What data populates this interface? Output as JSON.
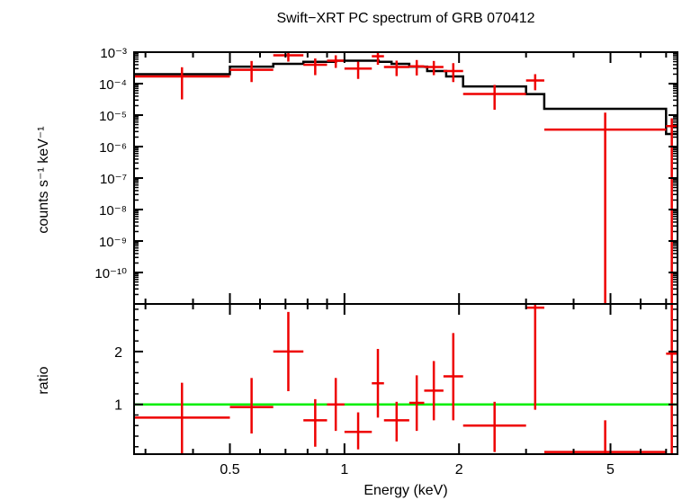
{
  "chart_data": {
    "type": "scatter",
    "title": "Swift−XRT PC spectrum of GRB 070412",
    "xlabel": "Energy (keV)",
    "x_scale": "log",
    "xlim": [
      0.28,
      7.5
    ],
    "x_ticks": [
      {
        "value": 0.5,
        "label": "0.5"
      },
      {
        "value": 1,
        "label": "1"
      },
      {
        "value": 2,
        "label": "2"
      },
      {
        "value": 5,
        "label": "5"
      }
    ],
    "colors": {
      "data": "#ee0000",
      "model": "#000000",
      "unity": "#00ee00"
    },
    "top_panel": {
      "ylabel": "counts s⁻¹ keV⁻¹",
      "y_scale": "log",
      "ylim_exp": [
        -11,
        -3
      ],
      "y_ticks": [
        {
          "exp": -3,
          "label": "10⁻³"
        },
        {
          "exp": -4,
          "label": "10⁻⁴"
        },
        {
          "exp": -5,
          "label": "10⁻⁵"
        },
        {
          "exp": -6,
          "label": "10⁻⁶"
        },
        {
          "exp": -7,
          "label": "10⁻⁷"
        },
        {
          "exp": -8,
          "label": "10⁻⁸"
        },
        {
          "exp": -9,
          "label": "10⁻⁹"
        },
        {
          "exp": -10,
          "label": "10⁻¹⁰"
        }
      ],
      "data": [
        {
          "xlo": 0.28,
          "xhi": 0.5,
          "exp": -3.77,
          "exp_lo": -4.5,
          "exp_hi": -3.48
        },
        {
          "xlo": 0.5,
          "xhi": 0.65,
          "exp": -3.56,
          "exp_lo": -3.95,
          "exp_hi": -3.28
        },
        {
          "xlo": 0.65,
          "xhi": 0.78,
          "exp": -3.1,
          "exp_lo": -3.3,
          "exp_hi": -2.93
        },
        {
          "xlo": 0.78,
          "xhi": 0.9,
          "exp": -3.4,
          "exp_lo": -3.73,
          "exp_hi": -3.2
        },
        {
          "xlo": 0.9,
          "xhi": 1.0,
          "exp": -3.27,
          "exp_lo": -3.5,
          "exp_hi": -3.1
        },
        {
          "xlo": 1.0,
          "xhi": 1.18,
          "exp": -3.52,
          "exp_lo": -3.85,
          "exp_hi": -3.3
        },
        {
          "xlo": 1.18,
          "xhi": 1.27,
          "exp": -3.13,
          "exp_lo": -3.4,
          "exp_hi": -2.97
        },
        {
          "xlo": 1.27,
          "xhi": 1.48,
          "exp": -3.47,
          "exp_lo": -3.76,
          "exp_hi": -3.27
        },
        {
          "xlo": 1.48,
          "xhi": 1.62,
          "exp": -3.45,
          "exp_lo": -3.74,
          "exp_hi": -3.25
        },
        {
          "xlo": 1.62,
          "xhi": 1.82,
          "exp": -3.47,
          "exp_lo": -3.73,
          "exp_hi": -3.28
        },
        {
          "xlo": 1.82,
          "xhi": 2.05,
          "exp": -3.6,
          "exp_lo": -3.95,
          "exp_hi": -3.35
        },
        {
          "xlo": 2.05,
          "xhi": 3.0,
          "exp": -4.33,
          "exp_lo": -4.83,
          "exp_hi": -4.04
        },
        {
          "xlo": 3.0,
          "xhi": 3.35,
          "exp": -3.9,
          "exp_lo": -4.21,
          "exp_hi": -3.7
        },
        {
          "xlo": 3.35,
          "xhi": 7.0,
          "exp": -5.46,
          "exp_lo": -11,
          "exp_hi": -4.92
        },
        {
          "xlo": 7.0,
          "xhi": 7.5,
          "exp": -5.35,
          "exp_lo": -11,
          "exp_hi": -5.1
        }
      ],
      "model_steps": [
        {
          "xlo": 0.28,
          "xhi": 0.5,
          "exp": -3.7
        },
        {
          "xlo": 0.5,
          "xhi": 0.65,
          "exp": -3.46
        },
        {
          "xlo": 0.65,
          "xhi": 0.78,
          "exp": -3.37
        },
        {
          "xlo": 0.78,
          "xhi": 0.95,
          "exp": -3.31
        },
        {
          "xlo": 0.95,
          "xhi": 1.23,
          "exp": -3.27
        },
        {
          "xlo": 1.23,
          "xhi": 1.33,
          "exp": -3.31
        },
        {
          "xlo": 1.33,
          "xhi": 1.48,
          "exp": -3.37
        },
        {
          "xlo": 1.48,
          "xhi": 1.65,
          "exp": -3.46
        },
        {
          "xlo": 1.65,
          "xhi": 1.85,
          "exp": -3.6
        },
        {
          "xlo": 1.85,
          "xhi": 2.05,
          "exp": -3.77
        },
        {
          "xlo": 2.05,
          "xhi": 3.0,
          "exp": -4.09
        },
        {
          "xlo": 3.0,
          "xhi": 3.35,
          "exp": -4.33
        },
        {
          "xlo": 3.35,
          "xhi": 7.0,
          "exp": -4.8
        },
        {
          "xlo": 7.0,
          "xhi": 7.5,
          "exp": -5.6
        }
      ]
    },
    "bottom_panel": {
      "ylabel": "ratio",
      "ylim": [
        0.06,
        2.9
      ],
      "y_ticks": [
        {
          "value": 1,
          "label": "1"
        },
        {
          "value": 2,
          "label": "2"
        }
      ],
      "unity": 1,
      "data": [
        {
          "xlo": 0.28,
          "xhi": 0.5,
          "y": 0.75,
          "ylo": 0.06,
          "yhi": 1.41
        },
        {
          "xlo": 0.5,
          "xhi": 0.65,
          "y": 0.95,
          "ylo": 0.45,
          "yhi": 1.5
        },
        {
          "xlo": 0.65,
          "xhi": 0.78,
          "y": 2.0,
          "ylo": 1.25,
          "yhi": 2.75
        },
        {
          "xlo": 0.78,
          "xhi": 0.9,
          "y": 0.7,
          "ylo": 0.2,
          "yhi": 1.1
        },
        {
          "xlo": 0.9,
          "xhi": 1.0,
          "y": 1.0,
          "ylo": 0.5,
          "yhi": 1.5
        },
        {
          "xlo": 1.0,
          "xhi": 1.18,
          "y": 0.48,
          "ylo": 0.15,
          "yhi": 0.85
        },
        {
          "xlo": 1.18,
          "xhi": 1.27,
          "y": 1.4,
          "ylo": 0.75,
          "yhi": 2.05
        },
        {
          "xlo": 1.27,
          "xhi": 1.48,
          "y": 0.7,
          "ylo": 0.3,
          "yhi": 1.05
        },
        {
          "xlo": 1.48,
          "xhi": 1.62,
          "y": 1.03,
          "ylo": 0.5,
          "yhi": 1.55
        },
        {
          "xlo": 1.62,
          "xhi": 1.82,
          "y": 1.26,
          "ylo": 0.7,
          "yhi": 1.82
        },
        {
          "xlo": 1.82,
          "xhi": 2.05,
          "y": 1.53,
          "ylo": 0.7,
          "yhi": 2.35
        },
        {
          "xlo": 2.05,
          "xhi": 3.0,
          "y": 0.6,
          "ylo": 0.1,
          "yhi": 1.05
        },
        {
          "xlo": 3.0,
          "xhi": 3.35,
          "y": 2.83,
          "ylo": 0.9,
          "yhi": 2.9
        },
        {
          "xlo": 3.35,
          "xhi": 7.0,
          "y": 0.1,
          "ylo": 0.06,
          "yhi": 0.7
        },
        {
          "xlo": 7.0,
          "xhi": 7.5,
          "y": 1.96,
          "ylo": 0.06,
          "yhi": 2.9
        }
      ]
    }
  }
}
